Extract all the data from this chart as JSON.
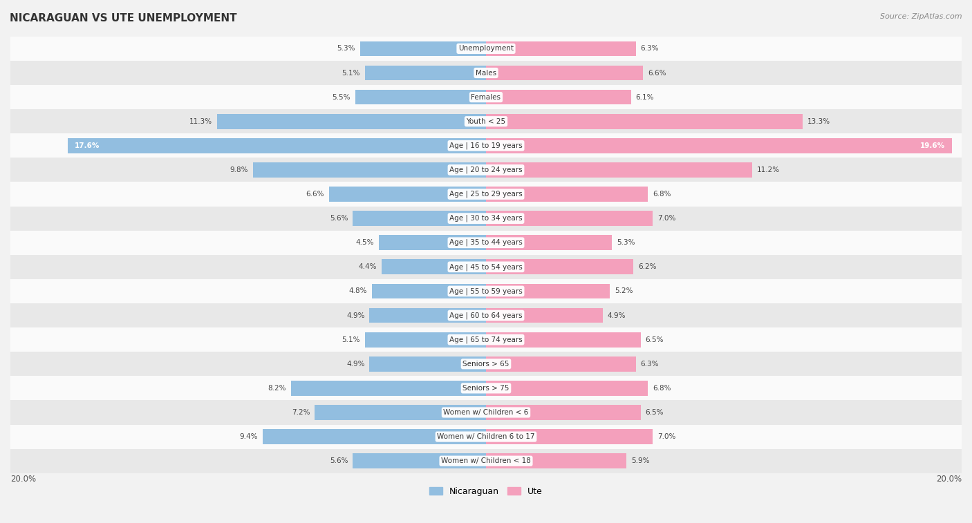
{
  "title": "NICARAGUAN VS UTE UNEMPLOYMENT",
  "source": "Source: ZipAtlas.com",
  "categories": [
    "Unemployment",
    "Males",
    "Females",
    "Youth < 25",
    "Age | 16 to 19 years",
    "Age | 20 to 24 years",
    "Age | 25 to 29 years",
    "Age | 30 to 34 years",
    "Age | 35 to 44 years",
    "Age | 45 to 54 years",
    "Age | 55 to 59 years",
    "Age | 60 to 64 years",
    "Age | 65 to 74 years",
    "Seniors > 65",
    "Seniors > 75",
    "Women w/ Children < 6",
    "Women w/ Children 6 to 17",
    "Women w/ Children < 18"
  ],
  "nicaraguan_values": [
    5.3,
    5.1,
    5.5,
    11.3,
    17.6,
    9.8,
    6.6,
    5.6,
    4.5,
    4.4,
    4.8,
    4.9,
    5.1,
    4.9,
    8.2,
    7.2,
    9.4,
    5.6
  ],
  "ute_values": [
    6.3,
    6.6,
    6.1,
    13.3,
    19.6,
    11.2,
    6.8,
    7.0,
    5.3,
    6.2,
    5.2,
    4.9,
    6.5,
    6.3,
    6.8,
    6.5,
    7.0,
    5.9
  ],
  "nicaraguan_color": "#92bee0",
  "ute_color": "#f4a0bc",
  "background_color": "#f2f2f2",
  "row_bg_light": "#fafafa",
  "row_bg_dark": "#e8e8e8",
  "max_value": 20.0,
  "legend_nicaraguan": "Nicaraguan",
  "legend_ute": "Ute"
}
